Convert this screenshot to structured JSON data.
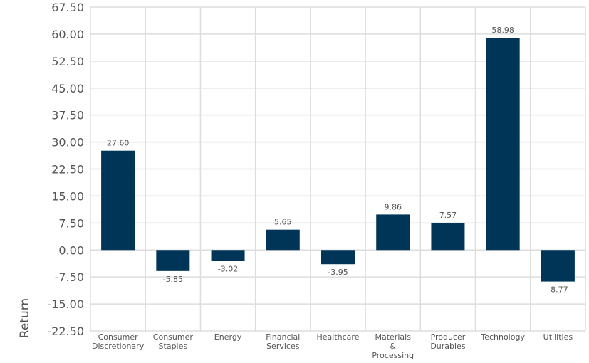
{
  "chart_data": {
    "type": "bar",
    "title": "",
    "xlabel": "",
    "ylabel": "Return",
    "ylim": [
      -22.5,
      67.5
    ],
    "yticks": [
      "67.50",
      "60.00",
      "52.50",
      "45.00",
      "37.50",
      "30.00",
      "22.50",
      "15.00",
      "7.50",
      "0.00",
      "-7.50",
      "-15.00",
      "-22.50"
    ],
    "categories": [
      [
        "Consumer",
        "Discretionary"
      ],
      [
        "Consumer",
        "Staples"
      ],
      [
        "Energy"
      ],
      [
        "Financial",
        "Services"
      ],
      [
        "Healthcare"
      ],
      [
        "Materials",
        "&",
        "Processing"
      ],
      [
        "Producer",
        "Durables"
      ],
      [
        "Technology"
      ],
      [
        "Utilities"
      ]
    ],
    "values": [
      27.6,
      -5.85,
      -3.02,
      5.65,
      -3.95,
      9.86,
      7.57,
      58.98,
      -8.77
    ],
    "value_labels": [
      "27.60",
      "-5.85",
      "-3.02",
      "5.65",
      "-3.95",
      "9.86",
      "7.57",
      "58.98",
      "-8.77"
    ],
    "grid": true,
    "legend": "none",
    "bar_color": "#003557"
  }
}
